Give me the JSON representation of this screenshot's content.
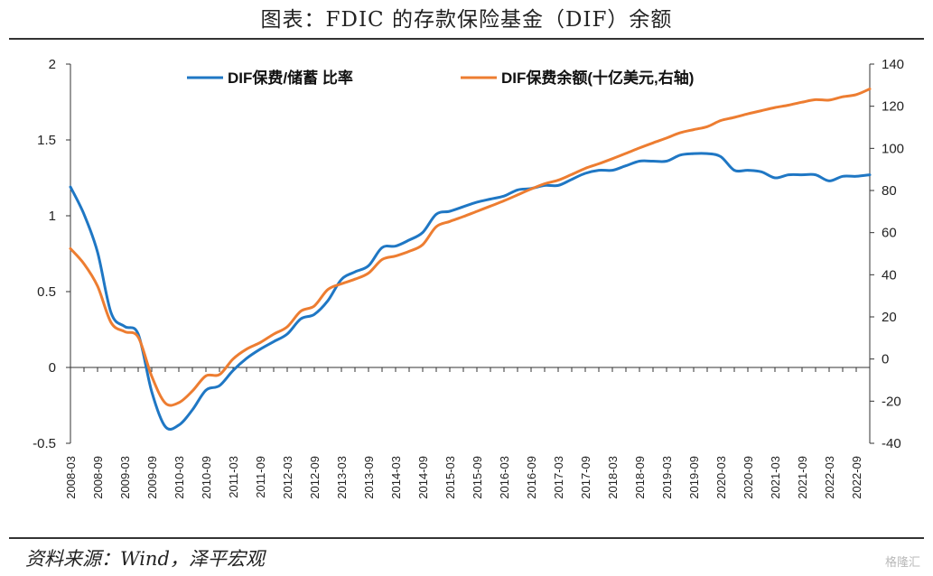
{
  "title": "图表：FDIC 的存款保险基金（DIF）余额",
  "source": "资料来源：Wind，泽平宏观",
  "watermark": "格隆汇",
  "chart_data": {
    "type": "line",
    "x": [
      "2008-03",
      "2008-06",
      "2008-09",
      "2008-12",
      "2009-03",
      "2009-06",
      "2009-09",
      "2009-12",
      "2010-03",
      "2010-06",
      "2010-09",
      "2010-12",
      "2011-03",
      "2011-06",
      "2011-09",
      "2011-12",
      "2012-03",
      "2012-06",
      "2012-09",
      "2012-12",
      "2013-03",
      "2013-06",
      "2013-09",
      "2013-12",
      "2014-03",
      "2014-06",
      "2014-09",
      "2014-12",
      "2015-03",
      "2015-06",
      "2015-09",
      "2015-12",
      "2016-03",
      "2016-06",
      "2016-09",
      "2016-12",
      "2017-03",
      "2017-06",
      "2017-09",
      "2017-12",
      "2018-03",
      "2018-06",
      "2018-09",
      "2018-12",
      "2019-03",
      "2019-06",
      "2019-09",
      "2019-12",
      "2020-03",
      "2020-06",
      "2020-09",
      "2020-12",
      "2021-03",
      "2021-06",
      "2021-09",
      "2021-12",
      "2022-03",
      "2022-06",
      "2022-09",
      "2022-12"
    ],
    "x_tick_labels": [
      "2008-03",
      "2008-09",
      "2009-03",
      "2009-09",
      "2010-03",
      "2010-09",
      "2011-03",
      "2011-09",
      "2012-03",
      "2012-09",
      "2013-03",
      "2013-09",
      "2014-03",
      "2014-09",
      "2015-03",
      "2015-09",
      "2016-03",
      "2016-09",
      "2017-03",
      "2017-09",
      "2018-03",
      "2018-09",
      "2019-03",
      "2019-09",
      "2020-03",
      "2020-09",
      "2021-03",
      "2021-09",
      "2022-03",
      "2022-09"
    ],
    "series": [
      {
        "name": "DIF保费/储蓄 比率",
        "axis": "left",
        "color": "#1F77C4",
        "values": [
          1.19,
          1.01,
          0.76,
          0.36,
          0.27,
          0.22,
          -0.16,
          -0.39,
          -0.38,
          -0.28,
          -0.15,
          -0.12,
          -0.02,
          0.06,
          0.12,
          0.17,
          0.22,
          0.32,
          0.35,
          0.44,
          0.58,
          0.63,
          0.67,
          0.79,
          0.8,
          0.84,
          0.89,
          1.01,
          1.03,
          1.06,
          1.09,
          1.11,
          1.13,
          1.17,
          1.18,
          1.2,
          1.2,
          1.24,
          1.28,
          1.3,
          1.3,
          1.33,
          1.36,
          1.36,
          1.36,
          1.4,
          1.41,
          1.41,
          1.39,
          1.3,
          1.3,
          1.29,
          1.25,
          1.27,
          1.27,
          1.27,
          1.23,
          1.26,
          1.26,
          1.27
        ]
      },
      {
        "name": "DIF保费余额(十亿美元,右轴)",
        "axis": "right",
        "color": "#ED7D31",
        "values": [
          52.4,
          45.2,
          34.6,
          17.3,
          13.0,
          10.4,
          -8.2,
          -20.9,
          -20.7,
          -15.2,
          -8.0,
          -7.4,
          0.0,
          4.7,
          7.8,
          11.8,
          15.3,
          22.7,
          25.2,
          33.0,
          35.7,
          37.9,
          40.8,
          47.2,
          48.9,
          51.1,
          54.3,
          62.8,
          65.3,
          67.6,
          70.1,
          72.6,
          75.1,
          77.9,
          80.7,
          83.2,
          84.9,
          87.6,
          90.5,
          92.7,
          95.1,
          97.6,
          100.2,
          102.6,
          104.9,
          107.4,
          108.9,
          110.3,
          113.2,
          114.7,
          116.4,
          117.9,
          119.4,
          120.5,
          121.9,
          123.1,
          122.9,
          124.5,
          125.5,
          128.2
        ]
      }
    ],
    "y_left": {
      "ylim": [
        -0.5,
        2
      ],
      "ticks": [
        "-0.5",
        "0",
        "0.5",
        "1",
        "1.5",
        "2"
      ]
    },
    "y_right": {
      "ylim": [
        -40,
        140
      ],
      "ticks": [
        "-40",
        "-20",
        "0",
        "20",
        "40",
        "60",
        "80",
        "100",
        "120",
        "140"
      ]
    },
    "legend_placement": "top-inside",
    "grid": false
  }
}
